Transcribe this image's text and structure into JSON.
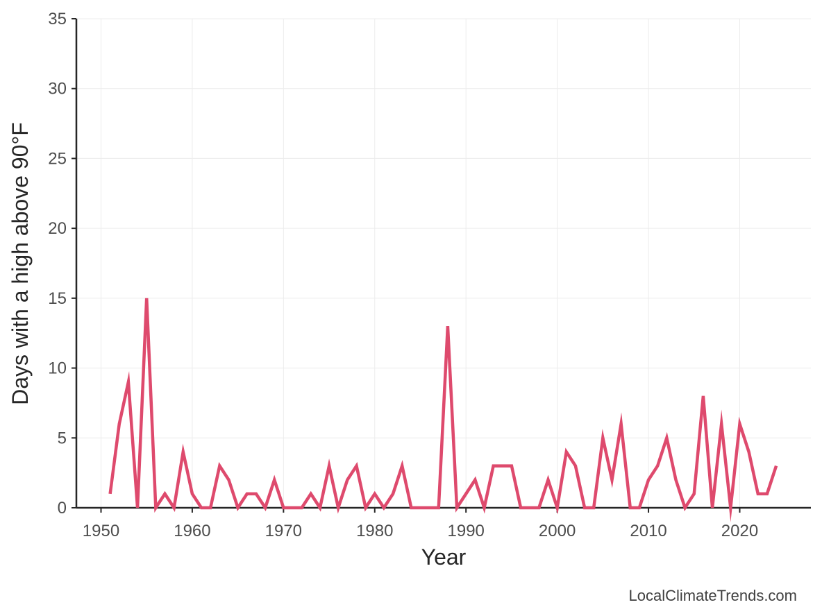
{
  "chart_data": {
    "type": "line",
    "xlabel": "Year",
    "ylabel": "Days with a high above 90°F",
    "xlim": [
      1947.3,
      1927.8
    ],
    "ylim": [
      0,
      35
    ],
    "xticks": [
      1950,
      1960,
      1970,
      1980,
      1990,
      2000,
      2010,
      2020
    ],
    "yticks": [
      0,
      5,
      10,
      15,
      20,
      25,
      30,
      35
    ],
    "grid": true,
    "line_color": "#de4a6d",
    "series": [
      {
        "x": [
          1951,
          1952,
          1953,
          1954,
          1955,
          1956,
          1957,
          1958,
          1959,
          1960,
          1961,
          1962,
          1963,
          1964,
          1965,
          1966,
          1967,
          1968,
          1969,
          1970,
          1971,
          1972,
          1973,
          1974,
          1975,
          1976,
          1977,
          1978,
          1979,
          1980,
          1981,
          1982,
          1983,
          1984,
          1985,
          1986,
          1987,
          1988,
          1989,
          1990,
          1991,
          1992,
          1993,
          1994,
          1995,
          1996,
          1997,
          1998,
          1999,
          2000,
          2001,
          2002,
          2003,
          2004,
          2005,
          2006,
          2007,
          2008,
          2009,
          2010,
          2011,
          2012,
          2013,
          2014,
          2015,
          2016,
          2017,
          2018,
          2019,
          2020,
          2021,
          2022,
          2023,
          2024
        ],
        "values": [
          1,
          6,
          9,
          0,
          15,
          0,
          1,
          0,
          4,
          1,
          0,
          0,
          3,
          2,
          0,
          1,
          1,
          0,
          2,
          0,
          0,
          0,
          1,
          0,
          3,
          0,
          2,
          3,
          0,
          1,
          0,
          1,
          3,
          0,
          0,
          0,
          0,
          13,
          0,
          1,
          2,
          0,
          3,
          3,
          3,
          0,
          0,
          0,
          2,
          0,
          4,
          3,
          0,
          0,
          5,
          2,
          6,
          0,
          0,
          2,
          3,
          5,
          2,
          0,
          1,
          8,
          0,
          6,
          0,
          6,
          4,
          1,
          1,
          3
        ]
      }
    ]
  },
  "source": "LocalClimateTrends.com"
}
